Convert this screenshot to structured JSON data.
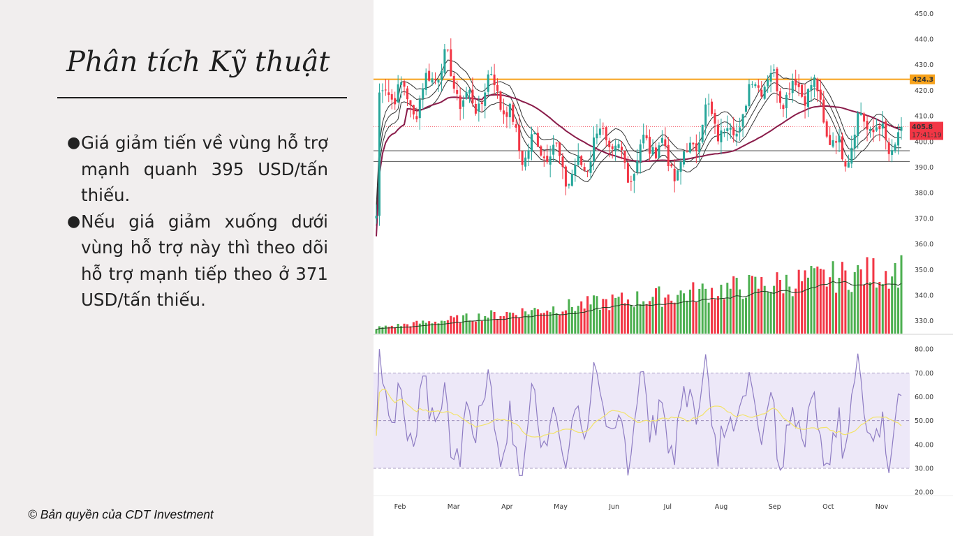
{
  "slide": {
    "title": "Phân tích Kỹ thuật",
    "bullets": [
      "Giá giảm tiến về vùng hỗ trợ mạnh quanh 395 USD/tấn thiếu.",
      "Nếu giá giảm xuống dưới vùng hỗ trợ này thì theo dõi hỗ trợ mạnh tiếp theo ở 371 USD/tấn thiếu."
    ],
    "copyright": "© Bản quyền của CDT Investment"
  },
  "chart_data": [
    {
      "type": "candlestick",
      "panel": "price",
      "x_labels": [
        "Feb",
        "Mar",
        "Apr",
        "May",
        "Jun",
        "Jul",
        "Aug",
        "Sep",
        "Oct",
        "Nov"
      ],
      "y_ticks": [
        "450.0",
        "440.0",
        "430.0",
        "420.0",
        "410.0",
        "400.0",
        "390.0",
        "380.0",
        "370.0",
        "360.0",
        "350.0",
        "340.0",
        "330.0"
      ],
      "ylim": [
        325,
        452
      ],
      "horizontal_lines": [
        {
          "value": 424.3,
          "color": "#f7a21b",
          "label": "424.3"
        },
        {
          "value": 396.4,
          "color": "#555555"
        },
        {
          "value": 392.2,
          "color": "#555555"
        }
      ],
      "last_price": {
        "value": 405.8,
        "label": "405.8",
        "countdown": "17:41:19",
        "color": "#f23645"
      },
      "monthly_close_points": [
        {
          "month": "Feb",
          "close": 412
        },
        {
          "month": "Mar",
          "close": 425
        },
        {
          "month": "Apr",
          "close": 417
        },
        {
          "month": "May",
          "close": 390
        },
        {
          "month": "Jun",
          "close": 397
        },
        {
          "month": "Jul",
          "close": 393
        },
        {
          "month": "Aug",
          "close": 408
        },
        {
          "month": "Sep",
          "close": 427
        },
        {
          "month": "Oct",
          "close": 400
        },
        {
          "month": "Nov",
          "close": 406
        }
      ],
      "colors": {
        "up": "#26a69a",
        "down": "#f23645",
        "ma_long": "#8a1c4a",
        "envelope": "#333333"
      }
    },
    {
      "type": "bar",
      "panel": "volume",
      "colors": {
        "up": "#4caf50",
        "down": "#f23645",
        "ma": "#1f3d1f"
      }
    },
    {
      "type": "line",
      "panel": "rsi",
      "y_ticks": [
        "80.00",
        "70.00",
        "60.00",
        "50.00",
        "40.00",
        "30.00",
        "20.00"
      ],
      "ylim": [
        18,
        83
      ],
      "bands": {
        "upper": 70,
        "middle": 50,
        "lower": 30
      },
      "colors": {
        "rsi": "#8e7cc3",
        "signal": "#f3e36a",
        "band_fill": "#ede8f8",
        "band_lines": "#9080b0"
      }
    }
  ]
}
